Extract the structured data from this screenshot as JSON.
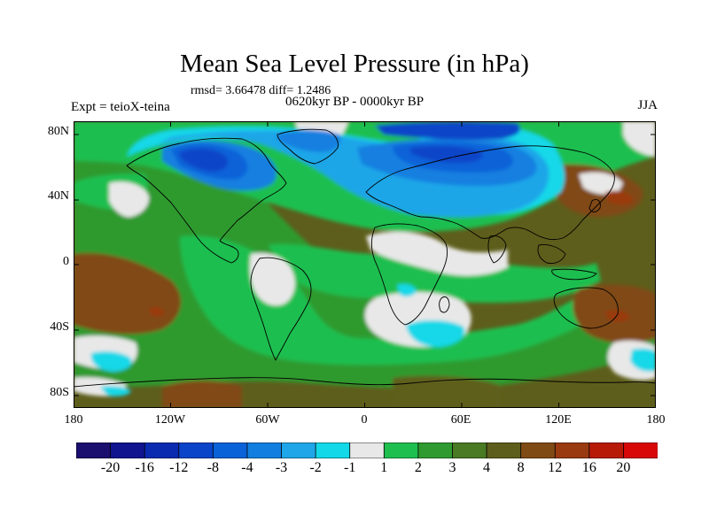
{
  "title": "Mean Sea Level Pressure (in hPa)",
  "stats": "rmsd= 3.66478 diff= 1.2486",
  "period": "0620kyr BP - 0000kyr BP",
  "experiment": "Expt = teioX-teina",
  "season": "JJA",
  "lat_labels": [
    "80N",
    "40N",
    "0",
    "40S",
    "80S"
  ],
  "lon_labels": [
    "180",
    "120W",
    "60W",
    "0",
    "60E",
    "120E",
    "180"
  ],
  "colorbar": {
    "labels": [
      "-20",
      "-16",
      "-12",
      "-8",
      "-4",
      "-3",
      "-2",
      "-1",
      "1",
      "2",
      "3",
      "4",
      "8",
      "12",
      "16",
      "20"
    ],
    "colors": [
      "#1a0e6e",
      "#10148f",
      "#0a2ab0",
      "#0a44c8",
      "#0a62d8",
      "#127fe0",
      "#1ea6e8",
      "#12d8e8",
      "#e8e8e8",
      "#1fbf4f",
      "#2f9a2f",
      "#4a7a24",
      "#5e5e1c",
      "#804a14",
      "#9a3a10",
      "#b81a08",
      "#d80808"
    ]
  }
}
